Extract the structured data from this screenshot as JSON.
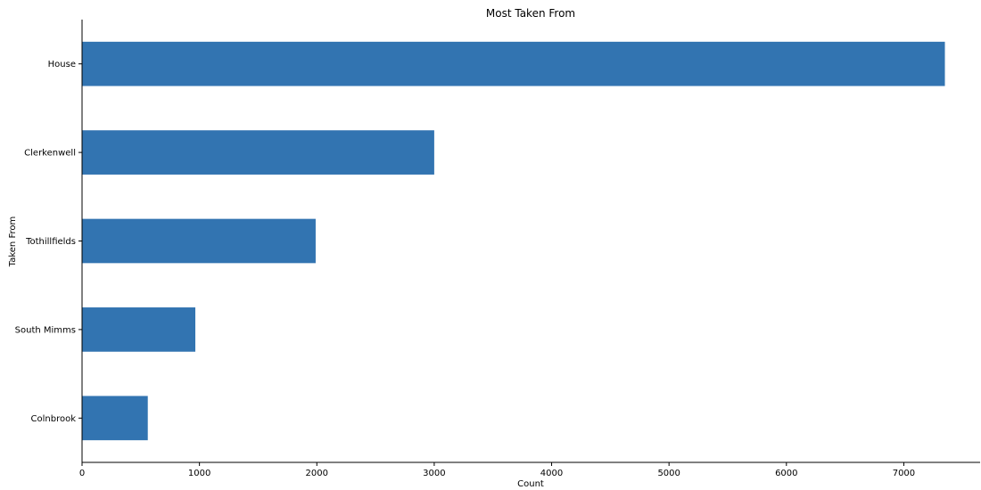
{
  "chart_data": {
    "type": "bar",
    "orientation": "horizontal",
    "title": "Most Taken From",
    "xlabel": "Count",
    "ylabel": "Taken From",
    "categories": [
      "House",
      "Clerkenwell",
      "Tothillfields",
      "South Mimms",
      "Colnbrook"
    ],
    "values": [
      7350,
      3000,
      1990,
      965,
      560
    ],
    "xlim": [
      0,
      7650
    ],
    "xticks": [
      0,
      1000,
      2000,
      3000,
      4000,
      5000,
      6000,
      7000
    ],
    "xtick_labels": [
      "0",
      "1000",
      "2000",
      "3000",
      "4000",
      "5000",
      "6000",
      "7000"
    ],
    "grid": false,
    "bar_color": "#3274b1"
  }
}
